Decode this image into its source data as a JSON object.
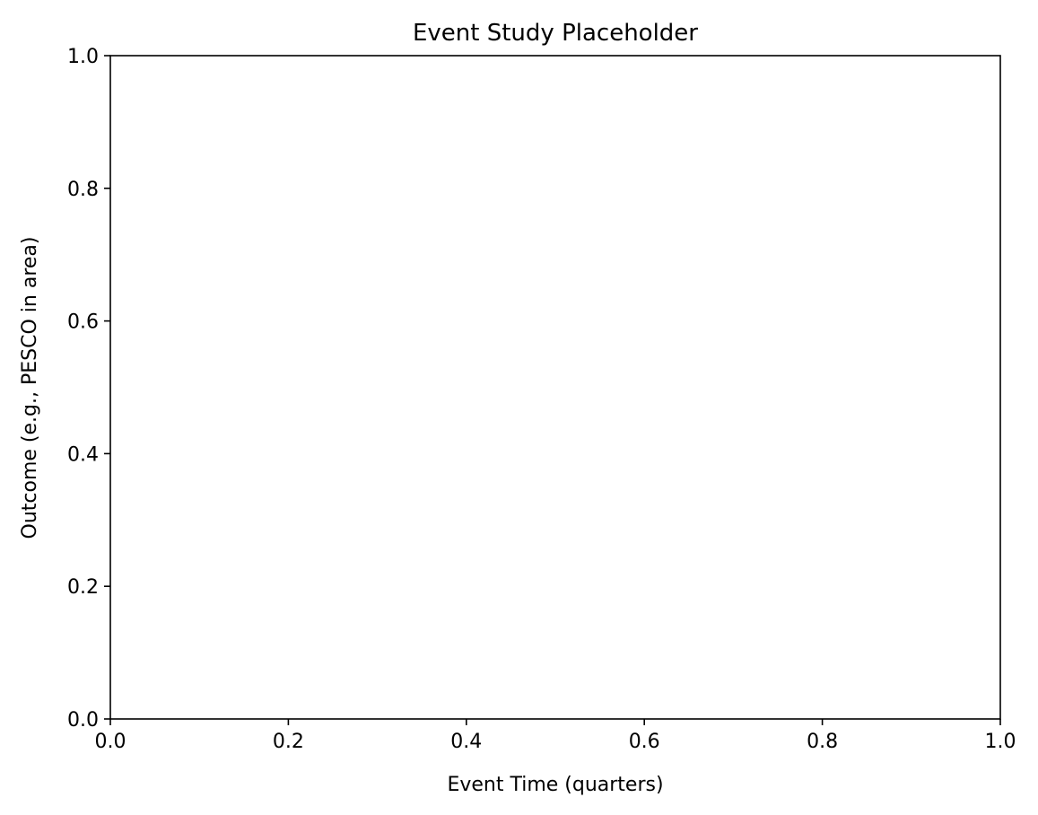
{
  "chart_data": {
    "type": "line",
    "title": "Event Study Placeholder",
    "xlabel": "Event Time (quarters)",
    "ylabel": "Outcome (e.g., PESCO in area)",
    "xlim": [
      0.0,
      1.0
    ],
    "ylim": [
      0.0,
      1.0
    ],
    "x_ticks": [
      0.0,
      0.2,
      0.4,
      0.6,
      0.8,
      1.0
    ],
    "y_ticks": [
      0.0,
      0.2,
      0.4,
      0.6,
      0.8,
      1.0
    ],
    "x_tick_labels": [
      "0.0",
      "0.2",
      "0.4",
      "0.6",
      "0.8",
      "1.0"
    ],
    "y_tick_labels": [
      "0.0",
      "0.2",
      "0.4",
      "0.6",
      "0.8",
      "1.0"
    ],
    "series": [],
    "grid": false,
    "legend": "none",
    "colors": {
      "axes": "#000000",
      "background": "#ffffff"
    }
  }
}
